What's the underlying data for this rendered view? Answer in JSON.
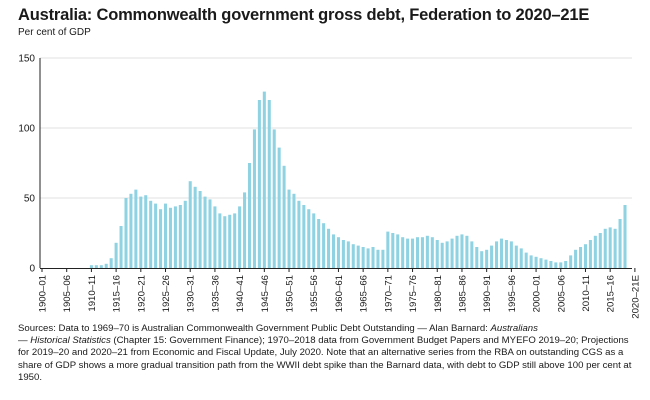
{
  "header": {
    "title": "Australia: Commonwealth government gross debt, Federation to 2020–21E",
    "subtitle": "Per cent of GDP"
  },
  "source": {
    "p1": "Sources: Data to 1969–70 is Australian Commonwealth Government Public Debt Outstanding — Alan Barnard: ",
    "italic1": "Australians",
    "p2": "— ",
    "italic2": "Historical Statistics",
    "p3": " (Chapter 15: Government Finance); 1970–2018 data from Government Budget Papers and MYEFO 2019–20; Projections for 2019–20 and 2020–21 from Economic and Fiscal Update, July 2020. Note that an alternative series from the RBA on outstanding CGS as a share of GDP shows a more gradual transition path from the WWII debt spike than the Barnard data, with debt to GDP still above 100 per cent at 1950."
  },
  "colors": {
    "bar": "#8fd3e3",
    "axis": "#222222",
    "grid": "#e2e2e2"
  },
  "chart_data": {
    "type": "bar",
    "ylim": [
      0,
      150
    ],
    "yticks": [
      0,
      50,
      100,
      150
    ],
    "grid": true,
    "xticks": [
      "1900–01",
      "1905–06",
      "1910–11",
      "1915–16",
      "1920–21",
      "1925–26",
      "1930–31",
      "1935–36",
      "1940–41",
      "1945–46",
      "1950–51",
      "1955–56",
      "1960–61",
      "1965–66",
      "1970–71",
      "1975–76",
      "1980–81",
      "1985–86",
      "1990–91",
      "1995–96",
      "2000–01",
      "2005–06",
      "2010–11",
      "2015–16",
      "2020–21E"
    ],
    "xtick_every": 5,
    "values": [
      0,
      0,
      0,
      0,
      0,
      0,
      0,
      0,
      0,
      0,
      2,
      2,
      2,
      3,
      7,
      18,
      30,
      50,
      53,
      56,
      51,
      52,
      48,
      46,
      42,
      46,
      43,
      44,
      45,
      48,
      62,
      58,
      55,
      51,
      49,
      44,
      39,
      37,
      38,
      39,
      44,
      54,
      75,
      99,
      120,
      126,
      120,
      99,
      86,
      73,
      56,
      53,
      48,
      45,
      42,
      39,
      35,
      32,
      28,
      24,
      22,
      20,
      19,
      17,
      16,
      15,
      14,
      15,
      13,
      13,
      26,
      25,
      24,
      22,
      21,
      21,
      22,
      22,
      23,
      22,
      20,
      18,
      19,
      21,
      23,
      24,
      23,
      19,
      15,
      12,
      13,
      16,
      19,
      21,
      20,
      19,
      16,
      14,
      11,
      9,
      8,
      7,
      6,
      5,
      4,
      4,
      5,
      9,
      13,
      15,
      17,
      20,
      23,
      25,
      28,
      29,
      28,
      35,
      45
    ]
  }
}
